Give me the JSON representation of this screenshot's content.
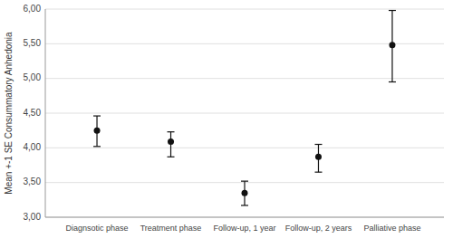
{
  "chart_data": {
    "type": "errorbar",
    "categories": [
      "Diagnsotic phase",
      "Treatment phase",
      "Follow-up, 1 year",
      "Follow-up, 2 years",
      "Palliative phase"
    ],
    "values": [
      4.25,
      4.09,
      3.35,
      3.87,
      5.48
    ],
    "yerr_lower": [
      0.23,
      0.22,
      0.18,
      0.22,
      0.53
    ],
    "yerr_upper": [
      0.21,
      0.14,
      0.17,
      0.18,
      0.5
    ],
    "ylabel": "Mean +-1 SE Consummatory Anhedonia",
    "ylim": [
      3.0,
      6.0
    ],
    "yticks": [
      {
        "value": 3.0,
        "label": "3,00"
      },
      {
        "value": 3.5,
        "label": "3,50"
      },
      {
        "value": 4.0,
        "label": "4,00"
      },
      {
        "value": 4.5,
        "label": "4,50"
      },
      {
        "value": 5.0,
        "label": "5,00"
      },
      {
        "value": 5.5,
        "label": "5,50"
      },
      {
        "value": 6.0,
        "label": "6,00"
      }
    ],
    "color": "#111111",
    "marker": "circle",
    "grid": true
  }
}
